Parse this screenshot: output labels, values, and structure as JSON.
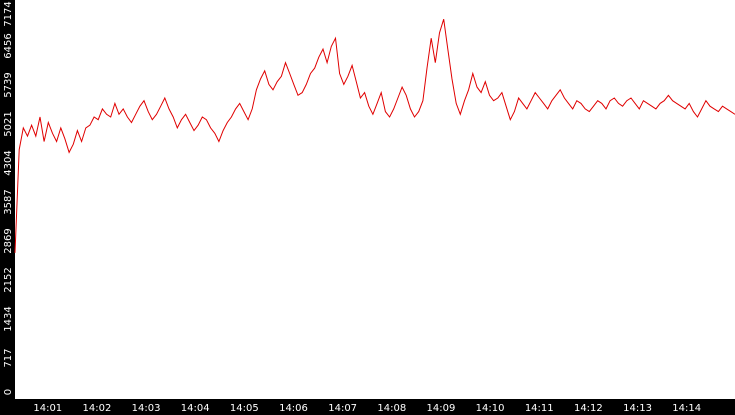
{
  "chart_data": {
    "type": "line",
    "title": "",
    "xlabel": "",
    "ylabel": "",
    "x_start": "14:00:20",
    "x_end": "14:14:59",
    "x_ticks": [
      "14:01",
      "14:02",
      "14:03",
      "14:04",
      "14:05",
      "14:06",
      "14:07",
      "14:08",
      "14:09",
      "14:10",
      "14:11",
      "14:12",
      "14:13",
      "14:14"
    ],
    "y_ticks": [
      "0",
      "717",
      "1434",
      "2152",
      "2869",
      "3587",
      "4304",
      "5021",
      "5739",
      "6456",
      "7174"
    ],
    "ylim": [
      0,
      7174
    ],
    "grid": false,
    "legend": "none",
    "colors": {
      "line": "#e00000",
      "axis_bar": "#000000",
      "tick_text": "#ffffff",
      "background": "#ffffff"
    },
    "series": [
      {
        "values": [
          2650,
          4550,
          4950,
          4800,
          5000,
          4800,
          5150,
          4700,
          5050,
          4850,
          4700,
          4950,
          4750,
          4500,
          4650,
          4900,
          4700,
          4950,
          5000,
          5150,
          5100,
          5300,
          5200,
          5150,
          5400,
          5200,
          5300,
          5150,
          5050,
          5200,
          5350,
          5450,
          5250,
          5100,
          5200,
          5350,
          5500,
          5300,
          5150,
          4950,
          5100,
          5200,
          5050,
          4900,
          5000,
          5150,
          5100,
          4950,
          4850,
          4700,
          4900,
          5050,
          5150,
          5300,
          5400,
          5250,
          5100,
          5300,
          5650,
          5850,
          6000,
          5750,
          5650,
          5800,
          5900,
          6150,
          5950,
          5750,
          5550,
          5600,
          5750,
          5950,
          6050,
          6250,
          6400,
          6150,
          6450,
          6600,
          5950,
          5750,
          5900,
          6100,
          5800,
          5500,
          5600,
          5350,
          5200,
          5400,
          5600,
          5250,
          5150,
          5300,
          5500,
          5700,
          5550,
          5300,
          5150,
          5250,
          5450,
          6050,
          6600,
          6150,
          6700,
          6950,
          6400,
          5850,
          5400,
          5200,
          5450,
          5650,
          5950,
          5700,
          5600,
          5800,
          5550,
          5450,
          5500,
          5600,
          5350,
          5100,
          5250,
          5500,
          5400,
          5300,
          5450,
          5600,
          5500,
          5400,
          5300,
          5450,
          5550,
          5650,
          5500,
          5400,
          5300,
          5450,
          5400,
          5300,
          5250,
          5350,
          5450,
          5400,
          5300,
          5450,
          5500,
          5400,
          5350,
          5450,
          5500,
          5400,
          5300,
          5450,
          5400,
          5350,
          5300,
          5400,
          5450,
          5550,
          5450,
          5400,
          5350,
          5300,
          5400,
          5250,
          5150,
          5300,
          5450,
          5350,
          5300,
          5250,
          5350,
          5300,
          5250,
          5200
        ]
      }
    ]
  }
}
